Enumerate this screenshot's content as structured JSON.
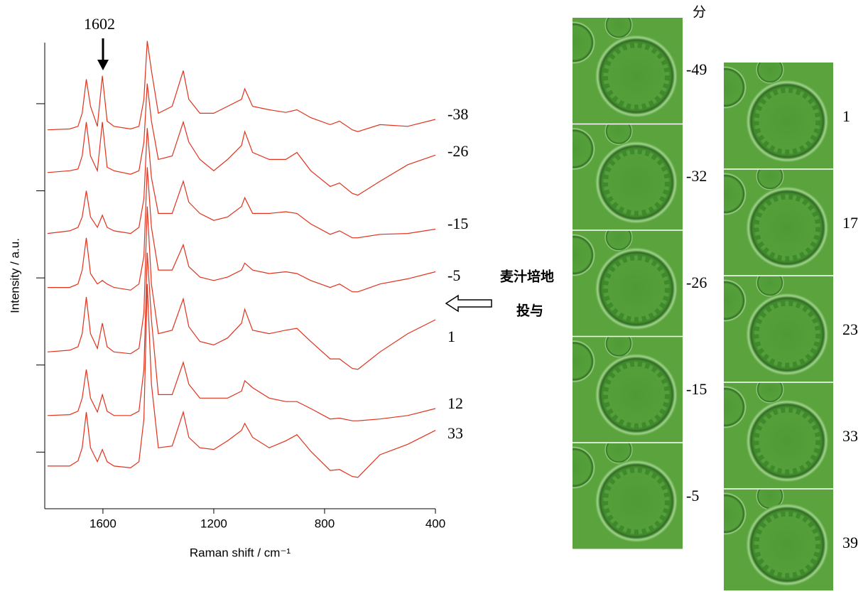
{
  "chart_data": {
    "type": "line",
    "y_label": "Intensity / a.u.",
    "x_label": "Raman shift / cm⁻¹",
    "annotation": "1602",
    "xlim": [
      1810,
      400
    ],
    "xticks": [
      1600,
      1200,
      800,
      400
    ],
    "ylim": [
      -0.65,
      4.75
    ],
    "yticks": [
      0,
      1,
      2,
      3,
      4
    ],
    "x": [
      1800,
      1720,
      1690,
      1675,
      1660,
      1645,
      1620,
      1602,
      1585,
      1560,
      1500,
      1470,
      1452,
      1440,
      1425,
      1400,
      1350,
      1310,
      1290,
      1250,
      1200,
      1150,
      1100,
      1088,
      1060,
      1000,
      940,
      900,
      850,
      780,
      746,
      700,
      680,
      600,
      500,
      400
    ],
    "series": [
      {
        "name": "-38",
        "color": "#e0321c",
        "values": [
          3.7,
          3.71,
          3.74,
          3.89,
          4.28,
          3.97,
          3.74,
          4.32,
          3.8,
          3.74,
          3.71,
          3.74,
          4.05,
          4.72,
          4.38,
          3.89,
          3.97,
          4.38,
          4.05,
          3.89,
          3.89,
          3.97,
          4.05,
          4.17,
          3.97,
          3.93,
          3.9,
          3.93,
          3.84,
          3.76,
          3.8,
          3.7,
          3.68,
          3.76,
          3.74,
          3.82
        ]
      },
      {
        "name": "-26",
        "color": "#e0321c",
        "values": [
          3.21,
          3.23,
          3.25,
          3.4,
          3.79,
          3.4,
          3.23,
          3.79,
          3.27,
          3.23,
          3.19,
          3.23,
          3.56,
          4.23,
          3.8,
          3.36,
          3.4,
          3.79,
          3.56,
          3.36,
          3.23,
          3.36,
          3.52,
          3.68,
          3.44,
          3.36,
          3.36,
          3.44,
          3.23,
          3.05,
          3.09,
          2.97,
          2.95,
          3.11,
          3.3,
          3.41
        ]
      },
      {
        "name": "-15",
        "color": "#e0321c",
        "values": [
          2.51,
          2.54,
          2.58,
          2.7,
          3.0,
          2.7,
          2.58,
          2.72,
          2.58,
          2.54,
          2.51,
          2.58,
          2.91,
          3.72,
          3.15,
          2.74,
          2.74,
          3.11,
          2.87,
          2.74,
          2.66,
          2.7,
          2.82,
          2.92,
          2.74,
          2.74,
          2.76,
          2.74,
          2.62,
          2.5,
          2.54,
          2.46,
          2.46,
          2.5,
          2.51,
          2.56
        ]
      },
      {
        "name": "-5",
        "color": "#e0321c",
        "values": [
          1.89,
          1.89,
          1.93,
          2.09,
          2.46,
          2.05,
          1.93,
          1.97,
          1.93,
          1.89,
          1.86,
          1.93,
          2.25,
          3.27,
          2.58,
          2.09,
          2.09,
          2.38,
          2.13,
          2.01,
          1.97,
          2.01,
          2.09,
          2.17,
          2.09,
          2.05,
          2.07,
          2.05,
          1.97,
          1.89,
          1.93,
          1.84,
          1.84,
          1.93,
          1.99,
          2.07
        ]
      },
      {
        "name": "1",
        "color": "#e0321c",
        "values": [
          1.15,
          1.17,
          1.21,
          1.36,
          1.78,
          1.36,
          1.19,
          1.48,
          1.21,
          1.15,
          1.13,
          1.19,
          1.6,
          2.82,
          1.93,
          1.36,
          1.4,
          1.76,
          1.44,
          1.27,
          1.23,
          1.31,
          1.48,
          1.64,
          1.4,
          1.36,
          1.4,
          1.42,
          1.27,
          1.07,
          1.07,
          0.96,
          0.95,
          1.15,
          1.36,
          1.52
        ]
      },
      {
        "name": "12",
        "color": "#e0321c",
        "values": [
          0.42,
          0.43,
          0.47,
          0.62,
          0.95,
          0.62,
          0.46,
          0.66,
          0.47,
          0.42,
          0.42,
          0.47,
          0.95,
          2.29,
          1.52,
          0.66,
          0.66,
          1.03,
          0.78,
          0.62,
          0.62,
          0.62,
          0.7,
          0.82,
          0.74,
          0.62,
          0.58,
          0.58,
          0.5,
          0.38,
          0.39,
          0.36,
          0.36,
          0.38,
          0.42,
          0.5
        ]
      },
      {
        "name": "33",
        "color": "#e0321c",
        "values": [
          -0.16,
          -0.16,
          -0.1,
          0.05,
          0.46,
          0.05,
          -0.11,
          0.03,
          -0.11,
          -0.16,
          -0.18,
          -0.11,
          0.38,
          1.93,
          0.78,
          0.05,
          0.07,
          0.46,
          0.17,
          0.05,
          0.03,
          0.13,
          0.25,
          0.33,
          0.17,
          0.05,
          0.13,
          0.2,
          0.01,
          -0.21,
          -0.2,
          -0.28,
          -0.29,
          -0.03,
          0.09,
          0.25
        ]
      }
    ]
  },
  "treatment": [
    "麦汁培地",
    "投与"
  ],
  "images": {
    "unit": "分",
    "column1": [
      "-49",
      "-32",
      "-26",
      "-15",
      "-5"
    ],
    "column2": [
      "1",
      "17",
      "23",
      "33",
      "39"
    ]
  }
}
